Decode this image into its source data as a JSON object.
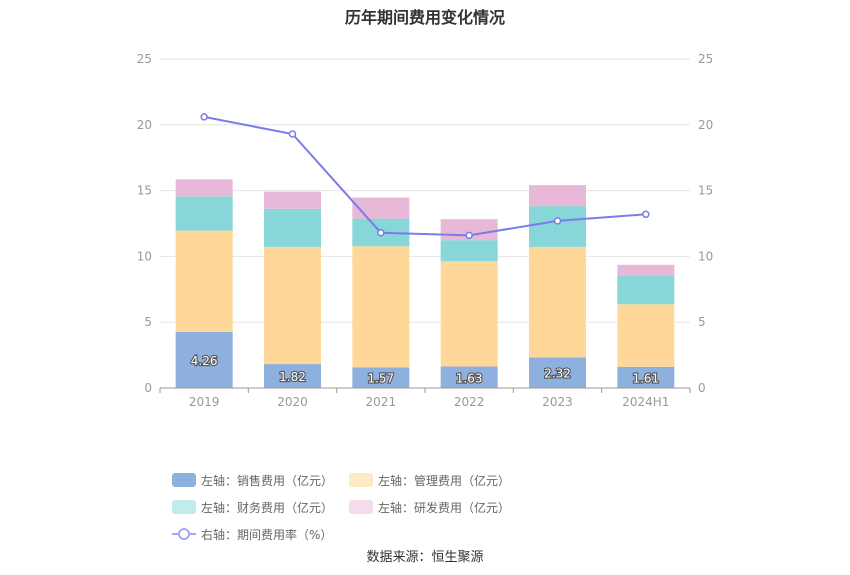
{
  "title": "历年期间费用变化情况",
  "source": "数据来源：恒生聚源",
  "chart_data": {
    "type": "bar",
    "stacked": true,
    "categories": [
      "2019",
      "2020",
      "2021",
      "2022",
      "2023",
      "2024H1"
    ],
    "left_axis": {
      "ylim": [
        0,
        25
      ],
      "ticks": [
        "0",
        "5",
        "10",
        "15",
        "20",
        "25"
      ]
    },
    "right_axis": {
      "ylim": [
        0,
        25
      ],
      "ticks": [
        "0",
        "5",
        "10",
        "15",
        "20",
        "25"
      ]
    },
    "grid": true,
    "legend_position": "bottom",
    "series": [
      {
        "name": "左轴：销售费用（亿元）",
        "type": "bar",
        "axis": "left",
        "color": "#8eb0de",
        "values": [
          4.26,
          1.82,
          1.57,
          1.63,
          2.32,
          1.61
        ],
        "labels": [
          "4.26",
          "1.82",
          "1.57",
          "1.63",
          "2.32",
          "1.61"
        ]
      },
      {
        "name": "左轴：管理费用（亿元）",
        "type": "bar",
        "axis": "left",
        "color": "#ffd899",
        "values": [
          7.7,
          8.9,
          9.2,
          8.0,
          8.4,
          4.75
        ]
      },
      {
        "name": "左轴：财务费用（亿元）",
        "type": "bar",
        "axis": "left",
        "color": "#87d6d8",
        "values": [
          2.6,
          2.9,
          2.1,
          1.6,
          3.1,
          2.15
        ]
      },
      {
        "name": "左轴：研发费用（亿元）",
        "type": "bar",
        "axis": "left",
        "color": "#e8b8d8",
        "values": [
          1.3,
          1.3,
          1.6,
          1.6,
          1.6,
          0.85
        ]
      },
      {
        "name": "右轴：期间费用率（%）",
        "type": "line",
        "axis": "right",
        "color": "#7b7bea",
        "values": [
          20.6,
          19.3,
          11.8,
          11.6,
          12.7,
          13.2
        ]
      }
    ]
  },
  "legend": [
    {
      "label": "左轴：销售费用（亿元）",
      "color": "#8eb0de",
      "kind": "box"
    },
    {
      "label": "左轴：管理费用（亿元）",
      "color": "#ffe8c4",
      "kind": "box"
    },
    {
      "label": "左轴：财务费用（亿元）",
      "color": "#c2ecec",
      "kind": "box"
    },
    {
      "label": "左轴：研发费用（亿元）",
      "color": "#f4dcec",
      "kind": "box"
    },
    {
      "label": "右轴：期间费用率（%）",
      "color": "#a6a6f2",
      "kind": "line"
    }
  ]
}
